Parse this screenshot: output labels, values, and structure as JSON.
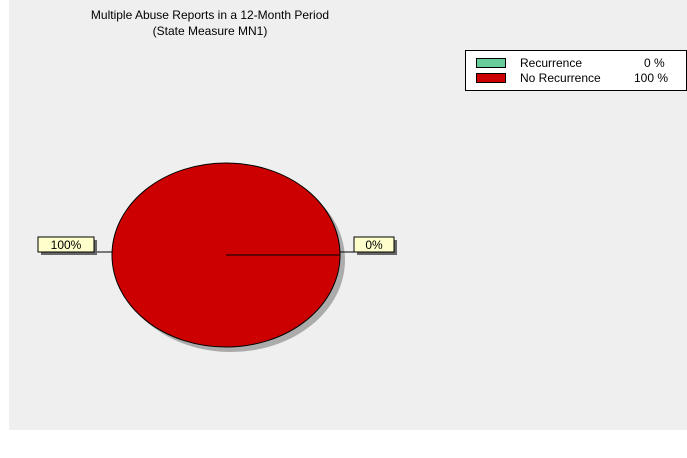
{
  "chart_data": {
    "type": "pie",
    "title": "Multiple Abuse Reports in a 12-Month Period",
    "subtitle": "(State Measure MN1)",
    "categories": [
      "Recurrence",
      "No Recurrence"
    ],
    "values": [
      0,
      100
    ],
    "value_labels": [
      "0%",
      "100%"
    ],
    "legend_values": [
      "0 %",
      "100 %"
    ],
    "colors": [
      "#66cc99",
      "#cc0000"
    ],
    "legend_position": "top-right"
  }
}
